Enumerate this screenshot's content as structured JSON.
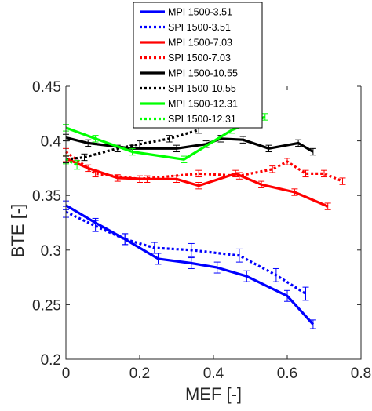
{
  "chart_data": {
    "type": "line",
    "xlabel": "MEF [-]",
    "ylabel": "BTE [-]",
    "xlim": [
      0,
      0.8
    ],
    "ylim": [
      0.2,
      0.45
    ],
    "xticks": [
      "0",
      "0.2",
      "0.4",
      "0.6",
      "0.8"
    ],
    "yticks": [
      "0.2",
      "0.25",
      "0.3",
      "0.35",
      "0.4",
      "0.45"
    ],
    "grid": false,
    "legend_position": "top-center",
    "series": [
      {
        "name": "MPI 1500-3.51",
        "color": "#0000ff",
        "dash": "solid",
        "x": [
          0,
          0.08,
          0.16,
          0.25,
          0.34,
          0.41,
          0.49,
          0.6,
          0.67
        ],
        "y": [
          0.341,
          0.325,
          0.31,
          0.292,
          0.288,
          0.284,
          0.276,
          0.258,
          0.232
        ],
        "err": [
          0.004,
          0.004,
          0.005,
          0.005,
          0.005,
          0.005,
          0.005,
          0.005,
          0.004
        ]
      },
      {
        "name": "SPI 1500-3.51",
        "color": "#0000ff",
        "dash": "dotted",
        "x": [
          0,
          0.08,
          0.16,
          0.24,
          0.34,
          0.47,
          0.57,
          0.65
        ],
        "y": [
          0.335,
          0.322,
          0.31,
          0.302,
          0.3,
          0.295,
          0.277,
          0.26
        ],
        "err": [
          0.005,
          0.005,
          0.005,
          0.005,
          0.006,
          0.006,
          0.006,
          0.006
        ]
      },
      {
        "name": "MPI 1500-7.03",
        "color": "#ff0000",
        "dash": "solid",
        "x": [
          0,
          0.06,
          0.14,
          0.22,
          0.3,
          0.36,
          0.46,
          0.53,
          0.62,
          0.71
        ],
        "y": [
          0.384,
          0.375,
          0.366,
          0.365,
          0.365,
          0.359,
          0.37,
          0.36,
          0.353,
          0.34
        ],
        "err": [
          0.003,
          0.003,
          0.003,
          0.003,
          0.003,
          0.003,
          0.003,
          0.003,
          0.003,
          0.003
        ]
      },
      {
        "name": "SPI 1500-7.03",
        "color": "#ff0000",
        "dash": "dotted",
        "x": [
          0,
          0.08,
          0.2,
          0.36,
          0.47,
          0.56,
          0.6,
          0.65,
          0.7,
          0.75
        ],
        "y": [
          0.39,
          0.37,
          0.365,
          0.37,
          0.368,
          0.374,
          0.381,
          0.37,
          0.37,
          0.363
        ],
        "err": [
          0.003,
          0.003,
          0.003,
          0.003,
          0.003,
          0.003,
          0.003,
          0.003,
          0.003,
          0.003
        ]
      },
      {
        "name": "MPI 1500-10.55",
        "color": "#000000",
        "dash": "solid",
        "x": [
          0,
          0.06,
          0.18,
          0.3,
          0.38,
          0.42,
          0.48,
          0.55,
          0.63,
          0.67
        ],
        "y": [
          0.403,
          0.398,
          0.393,
          0.393,
          0.397,
          0.402,
          0.401,
          0.393,
          0.398,
          0.39
        ],
        "err": [
          0.003,
          0.003,
          0.003,
          0.003,
          0.003,
          0.003,
          0.003,
          0.003,
          0.003,
          0.003
        ]
      },
      {
        "name": "SPI 1500-10.55",
        "color": "#000000",
        "dash": "dotted",
        "x": [
          0,
          0.05,
          0.14,
          0.2,
          0.28,
          0.36
        ],
        "y": [
          0.383,
          0.385,
          0.393,
          0.397,
          0.402,
          0.41
        ],
        "err": [
          0.003,
          0.003,
          0.003,
          0.003,
          0.003,
          0.003
        ]
      },
      {
        "name": "MPI 1500-12.31",
        "color": "#00ff00",
        "dash": "solid",
        "x": [
          0,
          0.08,
          0.18,
          0.32,
          0.45,
          0.54
        ],
        "y": [
          0.412,
          0.402,
          0.39,
          0.383,
          0.41,
          0.422
        ],
        "err": [
          0.003,
          0.003,
          0.003,
          0.003,
          0.003,
          0.003
        ]
      },
      {
        "name": "SPI 1500-12.31",
        "color": "#00ff00",
        "dash": "dotted",
        "x": [
          0,
          0.03
        ],
        "y": [
          0.383,
          0.378
        ],
        "err": [
          0.004,
          0.004
        ]
      }
    ]
  }
}
